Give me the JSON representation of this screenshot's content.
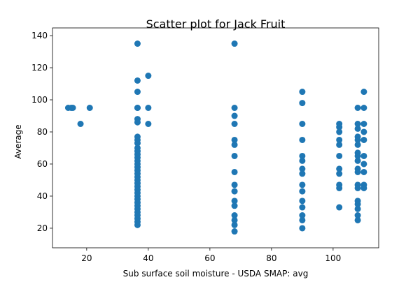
{
  "chart_data": {
    "type": "scatter",
    "title": "Scatter plot for Jack Fruit",
    "x_label": "Sub surface soil moisture - USDA SMAP: avg",
    "y_label": "Average",
    "color": "#1f77b4",
    "x": [
      14,
      15,
      15.5,
      18,
      21,
      36.5,
      36.5,
      36.5,
      36.5,
      36.5,
      36.5,
      36.5,
      36.5,
      36.5,
      36.5,
      36.5,
      36.5,
      36.5,
      36.5,
      36.5,
      36.5,
      36.5,
      36.5,
      36.5,
      36.5,
      36.5,
      36.5,
      36.5,
      36.5,
      36.5,
      36.5,
      36.5,
      36.5,
      36.5,
      36.5,
      36.5,
      36.5,
      36.5,
      36.5,
      36.5,
      40,
      40,
      40,
      68,
      68,
      68,
      68,
      68,
      68,
      68,
      68,
      68,
      68,
      68,
      68,
      68,
      68,
      68,
      68,
      90,
      90,
      90,
      90,
      90,
      90,
      90,
      90,
      90,
      90,
      90,
      90,
      90,
      90,
      90,
      102,
      102,
      102,
      102,
      102,
      102,
      102,
      102,
      102,
      102,
      102,
      108,
      108,
      108,
      108,
      108,
      108,
      108,
      108,
      108,
      108,
      108,
      108,
      108,
      108,
      108,
      108,
      108,
      108,
      110,
      110,
      110,
      110,
      110,
      110,
      110,
      110,
      110,
      110
    ],
    "y": [
      95,
      95,
      95,
      85,
      95,
      135,
      112,
      105,
      95,
      95,
      88,
      86,
      77,
      75,
      73,
      70,
      68,
      66,
      64,
      62,
      60,
      58,
      56,
      54,
      52,
      50,
      48,
      46,
      44,
      42,
      40,
      38,
      36,
      34,
      32,
      30,
      28,
      26,
      24,
      22,
      115,
      95,
      85,
      135,
      95,
      90,
      85,
      75,
      72,
      65,
      55,
      47,
      43,
      37,
      34,
      28,
      25,
      22,
      18,
      105,
      98,
      85,
      75,
      65,
      62,
      57,
      54,
      47,
      43,
      37,
      33,
      28,
      25,
      20,
      85,
      83,
      80,
      75,
      72,
      65,
      57,
      54,
      47,
      45,
      33,
      95,
      85,
      82,
      77,
      75,
      72,
      67,
      65,
      62,
      57,
      55,
      47,
      45,
      37,
      35,
      32,
      28,
      25,
      105,
      95,
      85,
      80,
      75,
      65,
      60,
      55,
      47,
      45
    ],
    "xlim": [
      8.9,
      114.8
    ],
    "xticks": [
      20,
      40,
      60,
      80,
      100
    ],
    "ylim": [
      7.8,
      144.8
    ],
    "yticks": [
      20,
      40,
      60,
      80,
      100,
      120,
      140
    ]
  }
}
